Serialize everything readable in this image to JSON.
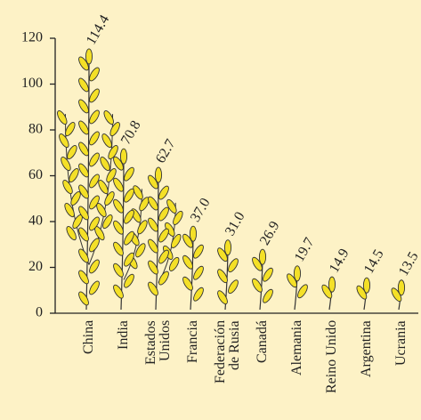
{
  "chart_data": {
    "type": "wheat",
    "categories": [
      "China",
      "India",
      "Estados\nUnidos",
      "Francia",
      "Federación\nde Rusia",
      "Canadá",
      "Alemania",
      "Reino Unido",
      "Argentina",
      "Ucrania"
    ],
    "values": [
      114.4,
      70.8,
      62.7,
      37.0,
      31.0,
      26.9,
      19.7,
      14.9,
      14.5,
      13.5
    ],
    "value_labels": [
      "114.4",
      "70.8",
      "62.7",
      "37.0",
      "31.0",
      "26.9",
      "19.7",
      "14.9",
      "14.5",
      "13.5"
    ],
    "color": "#f4e027",
    "ylim": [
      0,
      120
    ],
    "yticks": [
      0,
      20,
      40,
      60,
      80,
      100,
      120
    ]
  }
}
